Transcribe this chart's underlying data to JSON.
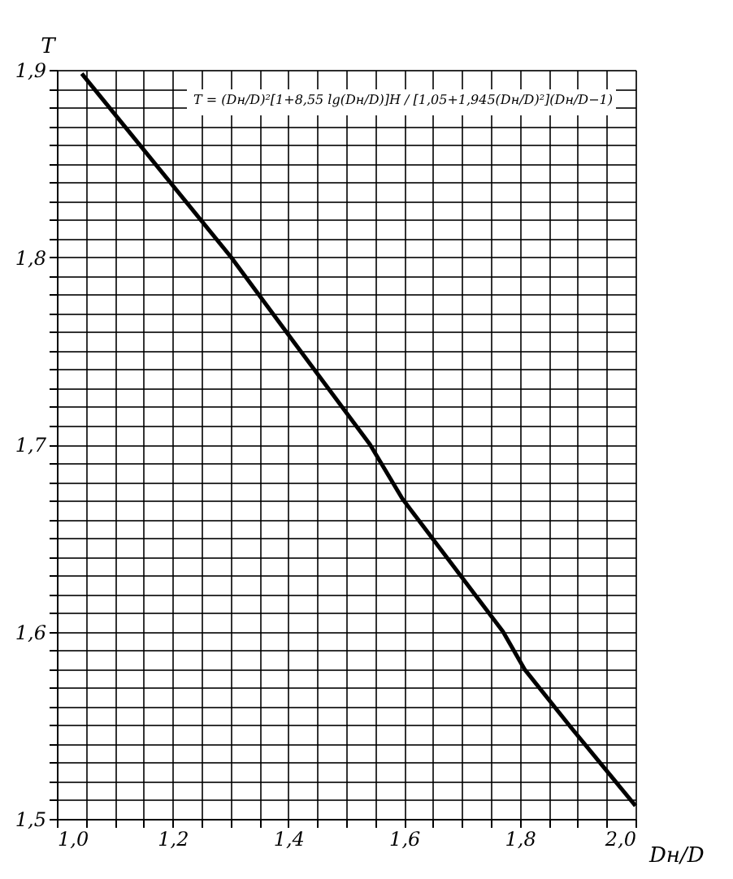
{
  "chart_data": {
    "type": "line",
    "xlabel": "Dн/D",
    "ylabel": "T",
    "annotations": [
      "T = (Dн/D)²[1+8,55 lg(Dн/D)]H / [1,05+1,945(Dн/D)²](Dн/D−1)"
    ],
    "x": [
      1.043,
      1.301,
      1.411,
      1.541,
      1.597,
      1.771,
      1.808,
      1.888,
      2.0
    ],
    "series": [
      {
        "color": "#000000",
        "values": [
          1.898,
          1.8,
          1.754,
          1.7,
          1.671,
          1.6,
          1.58,
          1.549,
          1.507
        ]
      }
    ],
    "xlim": [
      1.0,
      2.0
    ],
    "ylim": [
      1.5,
      1.9
    ],
    "xticks": [
      {
        "value": 1.0,
        "label": "1,0"
      },
      {
        "value": 1.05,
        "label": null
      },
      {
        "value": 1.1,
        "label": null
      },
      {
        "value": 1.15,
        "label": null
      },
      {
        "value": 1.2,
        "label": "1,2"
      },
      {
        "value": 1.25,
        "label": null
      },
      {
        "value": 1.3,
        "label": null
      },
      {
        "value": 1.35,
        "label": null
      },
      {
        "value": 1.4,
        "label": "1,4"
      },
      {
        "value": 1.45,
        "label": null
      },
      {
        "value": 1.5,
        "label": null
      },
      {
        "value": 1.55,
        "label": null
      },
      {
        "value": 1.6,
        "label": "1,6"
      },
      {
        "value": 1.65,
        "label": null
      },
      {
        "value": 1.7,
        "label": null
      },
      {
        "value": 1.75,
        "label": null
      },
      {
        "value": 1.8,
        "label": "1,8"
      },
      {
        "value": 1.85,
        "label": null
      },
      {
        "value": 1.9,
        "label": null
      },
      {
        "value": 1.95,
        "label": null
      },
      {
        "value": 2.0,
        "label": "2,0"
      }
    ],
    "yticks": [
      {
        "value": 1.5,
        "label": "1,5"
      },
      {
        "value": 1.51,
        "label": null
      },
      {
        "value": 1.52,
        "label": null
      },
      {
        "value": 1.53,
        "label": null
      },
      {
        "value": 1.54,
        "label": null
      },
      {
        "value": 1.55,
        "label": null
      },
      {
        "value": 1.56,
        "label": null
      },
      {
        "value": 1.57,
        "label": null
      },
      {
        "value": 1.58,
        "label": null
      },
      {
        "value": 1.59,
        "label": null
      },
      {
        "value": 1.6,
        "label": "1,6"
      },
      {
        "value": 1.61,
        "label": null
      },
      {
        "value": 1.62,
        "label": null
      },
      {
        "value": 1.63,
        "label": null
      },
      {
        "value": 1.64,
        "label": null
      },
      {
        "value": 1.65,
        "label": null
      },
      {
        "value": 1.66,
        "label": null
      },
      {
        "value": 1.67,
        "label": null
      },
      {
        "value": 1.68,
        "label": null
      },
      {
        "value": 1.69,
        "label": null
      },
      {
        "value": 1.7,
        "label": "1,7"
      },
      {
        "value": 1.71,
        "label": null
      },
      {
        "value": 1.72,
        "label": null
      },
      {
        "value": 1.73,
        "label": null
      },
      {
        "value": 1.74,
        "label": null
      },
      {
        "value": 1.75,
        "label": null
      },
      {
        "value": 1.76,
        "label": null
      },
      {
        "value": 1.77,
        "label": null
      },
      {
        "value": 1.78,
        "label": null
      },
      {
        "value": 1.79,
        "label": null
      },
      {
        "value": 1.8,
        "label": "1,8"
      },
      {
        "value": 1.81,
        "label": null
      },
      {
        "value": 1.82,
        "label": null
      },
      {
        "value": 1.83,
        "label": null
      },
      {
        "value": 1.84,
        "label": null
      },
      {
        "value": 1.85,
        "label": null
      },
      {
        "value": 1.86,
        "label": null
      },
      {
        "value": 1.87,
        "label": null
      },
      {
        "value": 1.88,
        "label": null
      },
      {
        "value": 1.89,
        "label": null
      },
      {
        "value": 1.9,
        "label": "1,9"
      }
    ],
    "grid": true,
    "marker": "none",
    "line_style": "solid"
  }
}
